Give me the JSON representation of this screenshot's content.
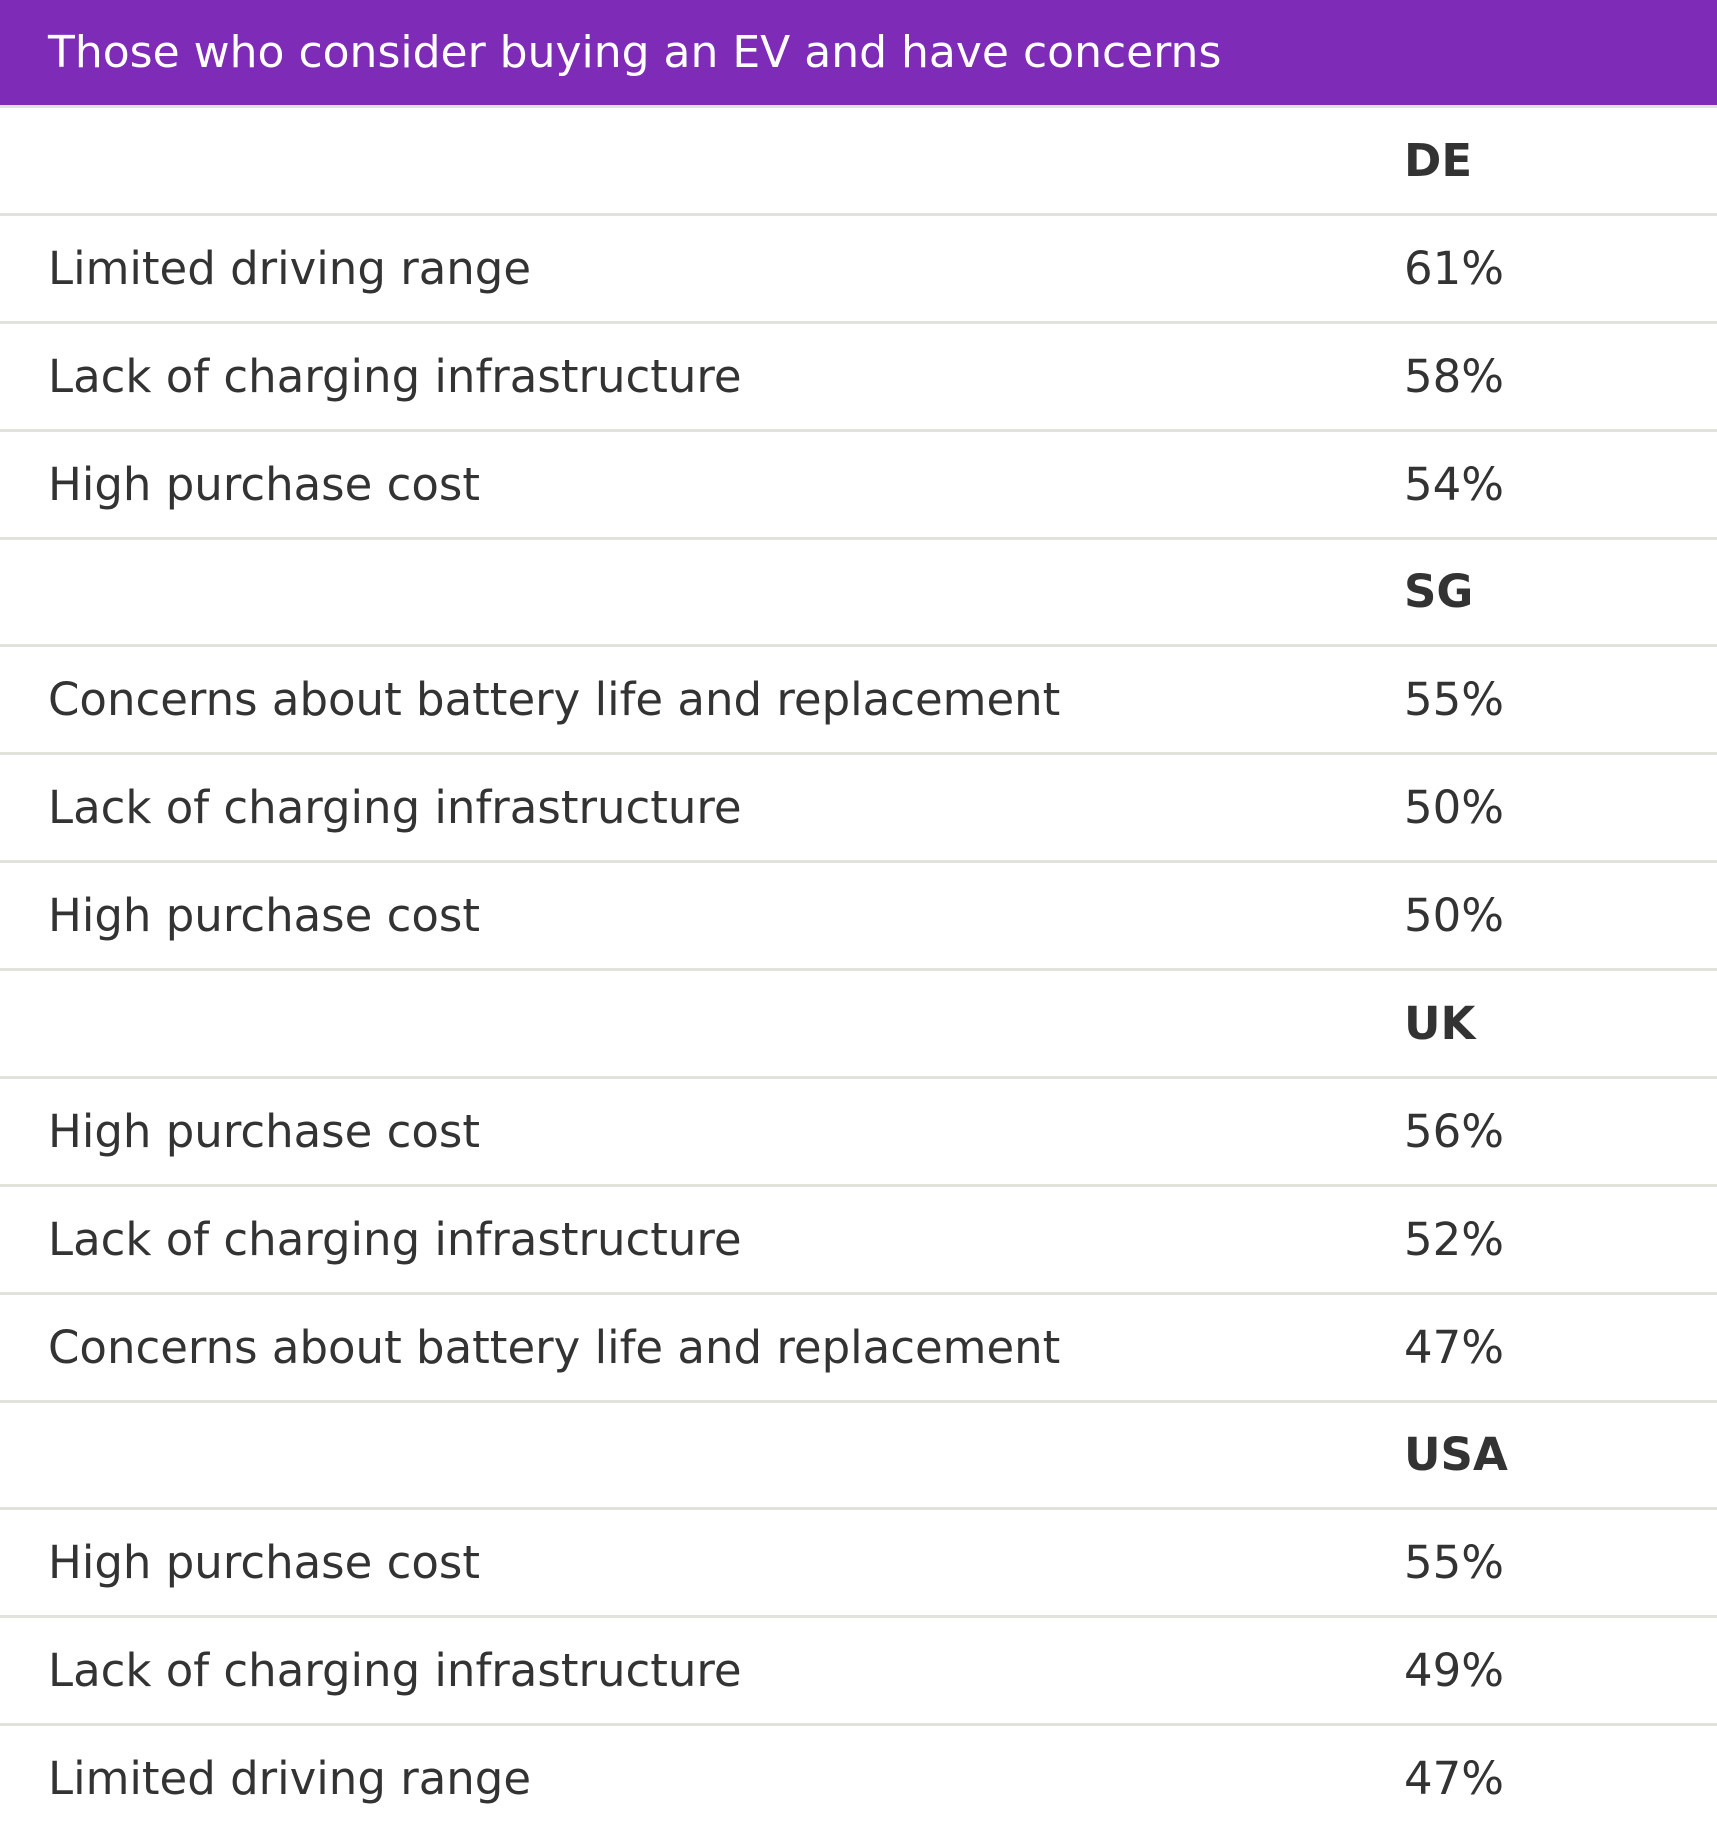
{
  "title": "Those who consider buying an EV and have concerns",
  "groups": [
    {
      "country": "DE",
      "rows": [
        {
          "label": "Limited driving range",
          "value": "61%"
        },
        {
          "label": "Lack of charging infrastructure",
          "value": "58%"
        },
        {
          "label": "High purchase cost",
          "value": "54%"
        }
      ]
    },
    {
      "country": "SG",
      "rows": [
        {
          "label": "Concerns about battery life and replacement",
          "value": "55%"
        },
        {
          "label": "Lack of charging infrastructure",
          "value": "50%"
        },
        {
          "label": "High purchase cost",
          "value": "50%"
        }
      ]
    },
    {
      "country": "UK",
      "rows": [
        {
          "label": "High purchase cost",
          "value": "56%"
        },
        {
          "label": "Lack of charging infrastructure",
          "value": "52%"
        },
        {
          "label": "Concerns about battery life and replacement",
          "value": "47%"
        }
      ]
    },
    {
      "country": "USA",
      "rows": [
        {
          "label": "High purchase cost",
          "value": "55%"
        },
        {
          "label": "Lack of charging infrastructure",
          "value": "49%"
        },
        {
          "label": "Limited driving range",
          "value": "47%"
        }
      ]
    }
  ]
}
